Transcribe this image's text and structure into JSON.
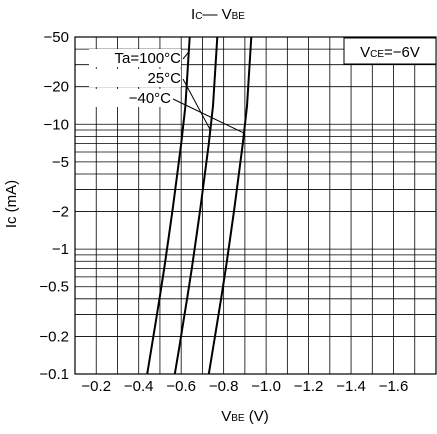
{
  "chart_data": {
    "type": "line",
    "title": {
      "main": "I",
      "main_sub": "C",
      "dash": "— V",
      "tail_sub": "BE"
    },
    "xlabel": {
      "main": "V",
      "sub": "BE",
      "unit": " (V)"
    },
    "ylabel": "Ic (mA)",
    "x_scale": "linear",
    "y_scale": "log",
    "x_ticks": [
      -0.2,
      -0.4,
      -0.6,
      -0.8,
      -1.0,
      -1.2,
      -1.4,
      -1.6
    ],
    "x_tick_labels": [
      "−0.2",
      "−0.4",
      "−0.6",
      "−0.8",
      "−1.0",
      "−1.2",
      "−1.4",
      "−1.6"
    ],
    "y_tick_values": [
      -50,
      -20,
      -10,
      -5,
      -2,
      -1,
      -0.5,
      -0.2,
      -0.1
    ],
    "y_tick_labels": [
      "−50",
      "−20",
      "−10",
      "−5",
      "−2",
      "−1",
      "−0.5",
      "−0.2",
      "−0.1"
    ],
    "xlim": [
      -0.1,
      -1.8
    ],
    "ylim": [
      -0.1,
      -50
    ],
    "grid": true,
    "condition": {
      "main": "V",
      "sub": "CE",
      "rest": "=−6V"
    },
    "series": [
      {
        "name": "Ta=100°C",
        "x": [
          -0.44,
          -0.46,
          -0.48,
          -0.5,
          -0.52,
          -0.54,
          -0.56,
          -0.58,
          -0.6,
          -0.62,
          -0.64
        ],
        "y": [
          -0.1,
          -0.16,
          -0.26,
          -0.42,
          -0.7,
          -1.2,
          -2.1,
          -3.8,
          -7.0,
          -14,
          -50
        ]
      },
      {
        "name": "25°C",
        "x": [
          -0.57,
          -0.59,
          -0.61,
          -0.63,
          -0.65,
          -0.67,
          -0.69,
          -0.71,
          -0.73,
          -0.75,
          -0.77
        ],
        "y": [
          -0.1,
          -0.16,
          -0.26,
          -0.42,
          -0.7,
          -1.2,
          -2.1,
          -3.8,
          -7.0,
          -14,
          -50
        ]
      },
      {
        "name": "−40°C",
        "x": [
          -0.73,
          -0.75,
          -0.77,
          -0.79,
          -0.81,
          -0.83,
          -0.85,
          -0.87,
          -0.89,
          -0.91,
          -0.93
        ],
        "y": [
          -0.1,
          -0.16,
          -0.26,
          -0.42,
          -0.7,
          -1.2,
          -2.1,
          -3.8,
          -7.0,
          -14,
          -50
        ]
      }
    ],
    "annotations": [
      "Ta=100°C",
      "25°C",
      "−40°C"
    ]
  }
}
